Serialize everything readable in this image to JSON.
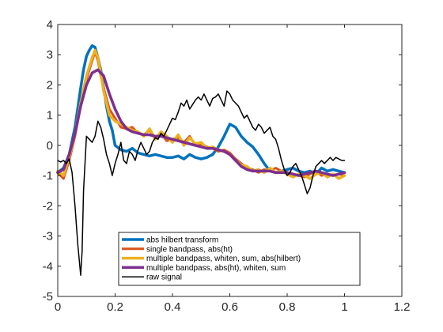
{
  "chart_data": {
    "type": "line",
    "title": "",
    "xlabel": "",
    "ylabel": "",
    "xlim": [
      0,
      1.2
    ],
    "ylim": [
      -5,
      4
    ],
    "xticks": [
      0,
      0.2,
      0.4,
      0.6,
      0.8,
      1,
      1.2
    ],
    "xtick_labels": [
      "0",
      "0.2",
      "0.4",
      "0.6",
      "0.8",
      "1",
      "1.2"
    ],
    "yticks": [
      -5,
      -4,
      -3,
      -2,
      -1,
      0,
      1,
      2,
      3,
      4
    ],
    "ytick_labels": [
      "-5",
      "-4",
      "-3",
      "-2",
      "-1",
      "0",
      "1",
      "2",
      "3",
      "4"
    ],
    "grid": false,
    "legend_position": "bottom-center",
    "series": [
      {
        "name": "abs hilbert transform",
        "color": "#0072BD",
        "width": 3.5,
        "x": [
          0,
          0.02,
          0.04,
          0.06,
          0.08,
          0.09,
          0.1,
          0.11,
          0.12,
          0.13,
          0.14,
          0.15,
          0.16,
          0.17,
          0.18,
          0.19,
          0.2,
          0.22,
          0.24,
          0.26,
          0.28,
          0.3,
          0.32,
          0.34,
          0.36,
          0.38,
          0.4,
          0.42,
          0.44,
          0.46,
          0.48,
          0.5,
          0.52,
          0.54,
          0.56,
          0.58,
          0.6,
          0.62,
          0.64,
          0.66,
          0.68,
          0.7,
          0.72,
          0.74,
          0.76,
          0.78,
          0.8,
          0.82,
          0.84,
          0.86,
          0.88,
          0.9,
          0.92,
          0.94,
          0.96,
          0.98,
          1.0
        ],
        "y": [
          -0.9,
          -0.75,
          -0.3,
          0.6,
          1.9,
          2.5,
          2.95,
          3.15,
          3.3,
          3.25,
          2.9,
          2.5,
          1.9,
          1.3,
          0.8,
          0.5,
          0.0,
          -0.15,
          -0.2,
          -0.1,
          -0.25,
          -0.3,
          -0.35,
          -0.3,
          -0.35,
          -0.4,
          -0.4,
          -0.35,
          -0.45,
          -0.3,
          -0.4,
          -0.45,
          -0.4,
          -0.3,
          -0.05,
          0.3,
          0.7,
          0.6,
          0.3,
          0.1,
          -0.05,
          -0.3,
          -0.6,
          -0.85,
          -0.9,
          -0.85,
          -0.8,
          -0.75,
          -0.85,
          -0.9,
          -0.85,
          -0.95,
          -0.75,
          -0.85,
          -0.8,
          -0.85,
          -0.9
        ]
      },
      {
        "name": "single bandpass, abs(ht)",
        "color": "#D95319",
        "width": 3,
        "x": [
          0,
          0.02,
          0.04,
          0.06,
          0.08,
          0.1,
          0.12,
          0.13,
          0.14,
          0.15,
          0.16,
          0.18,
          0.2,
          0.22,
          0.24,
          0.26,
          0.28,
          0.3,
          0.32,
          0.34,
          0.36,
          0.38,
          0.4,
          0.42,
          0.44,
          0.46,
          0.48,
          0.5,
          0.52,
          0.54,
          0.56,
          0.58,
          0.6,
          0.62,
          0.64,
          0.66,
          0.68,
          0.7,
          0.72,
          0.74,
          0.76,
          0.78,
          0.8,
          0.82,
          0.84,
          0.86,
          0.88,
          0.9,
          0.92,
          0.94,
          0.96,
          0.98,
          1.0
        ],
        "y": [
          -0.9,
          -1.1,
          -0.5,
          0.3,
          1.3,
          2.2,
          2.8,
          3.1,
          2.8,
          2.3,
          1.9,
          1.2,
          0.9,
          0.6,
          0.55,
          0.6,
          0.4,
          0.35,
          0.5,
          0.2,
          0.4,
          0.15,
          0.2,
          0.25,
          0.1,
          0.3,
          0.0,
          0.05,
          -0.05,
          -0.1,
          -0.2,
          -0.15,
          -0.25,
          -0.45,
          -0.6,
          -0.75,
          -0.8,
          -0.9,
          -0.8,
          -0.85,
          -0.75,
          -0.85,
          -0.9,
          -0.95,
          -1.0,
          -1.05,
          -0.95,
          -0.85,
          -1.0,
          -0.95,
          -1.0,
          -0.95,
          -1.0
        ]
      },
      {
        "name": "multiple bandpass, whiten, sum, abs(hilbert)",
        "color": "#EDB120",
        "width": 3.5,
        "x": [
          0,
          0.02,
          0.04,
          0.06,
          0.08,
          0.1,
          0.12,
          0.13,
          0.14,
          0.15,
          0.16,
          0.18,
          0.2,
          0.22,
          0.24,
          0.26,
          0.28,
          0.3,
          0.32,
          0.34,
          0.36,
          0.38,
          0.4,
          0.42,
          0.44,
          0.46,
          0.48,
          0.5,
          0.52,
          0.54,
          0.56,
          0.58,
          0.6,
          0.62,
          0.64,
          0.66,
          0.68,
          0.7,
          0.72,
          0.74,
          0.76,
          0.78,
          0.8,
          0.82,
          0.84,
          0.86,
          0.88,
          0.9,
          0.92,
          0.94,
          0.96,
          0.98,
          1.0
        ],
        "y": [
          -0.85,
          -1.0,
          -0.4,
          0.4,
          1.4,
          2.3,
          2.9,
          3.15,
          2.9,
          2.4,
          1.8,
          1.0,
          0.8,
          0.7,
          0.6,
          0.5,
          0.45,
          0.3,
          0.55,
          0.2,
          0.45,
          0.3,
          0.1,
          0.35,
          0.0,
          0.25,
          0.05,
          0.1,
          -0.1,
          -0.05,
          -0.15,
          -0.2,
          -0.3,
          -0.5,
          -0.65,
          -0.7,
          -0.85,
          -0.8,
          -0.9,
          -0.75,
          -0.9,
          -0.85,
          -0.95,
          -1.05,
          -0.95,
          -1.0,
          -1.1,
          -0.95,
          -0.9,
          -1.05,
          -0.95,
          -1.1,
          -1.0
        ]
      },
      {
        "name": "multiple bandpass, abs(ht), whiten, sum",
        "color": "#7E2F8E",
        "width": 3.5,
        "x": [
          0,
          0.02,
          0.04,
          0.06,
          0.08,
          0.1,
          0.12,
          0.14,
          0.16,
          0.18,
          0.2,
          0.22,
          0.24,
          0.26,
          0.28,
          0.3,
          0.32,
          0.34,
          0.36,
          0.38,
          0.4,
          0.42,
          0.44,
          0.46,
          0.48,
          0.5,
          0.52,
          0.54,
          0.56,
          0.58,
          0.6,
          0.62,
          0.64,
          0.66,
          0.68,
          0.7,
          0.72,
          0.74,
          0.76,
          0.78,
          0.8,
          0.82,
          0.84,
          0.86,
          0.88,
          0.9,
          0.92,
          0.94,
          0.96,
          0.98,
          1.0
        ],
        "y": [
          -0.9,
          -0.8,
          -0.3,
          0.4,
          1.3,
          2.0,
          2.4,
          2.5,
          2.3,
          1.7,
          1.2,
          0.8,
          0.55,
          0.45,
          0.4,
          0.35,
          0.35,
          0.3,
          0.3,
          0.25,
          0.2,
          0.15,
          0.1,
          0.05,
          0.0,
          -0.05,
          -0.1,
          -0.1,
          -0.15,
          -0.2,
          -0.3,
          -0.5,
          -0.7,
          -0.8,
          -0.85,
          -0.85,
          -0.85,
          -0.85,
          -0.9,
          -0.9,
          -0.9,
          -0.95,
          -1.0,
          -0.95,
          -0.9,
          -0.85,
          -0.9,
          -0.95,
          -1.0,
          -0.95,
          -0.9
        ]
      },
      {
        "name": "raw signal",
        "color": "#000000",
        "width": 1.5,
        "x": [
          0,
          0.01,
          0.02,
          0.03,
          0.04,
          0.05,
          0.06,
          0.07,
          0.08,
          0.085,
          0.09,
          0.1,
          0.11,
          0.12,
          0.13,
          0.14,
          0.15,
          0.16,
          0.17,
          0.18,
          0.19,
          0.2,
          0.21,
          0.22,
          0.23,
          0.24,
          0.25,
          0.26,
          0.27,
          0.28,
          0.29,
          0.3,
          0.31,
          0.32,
          0.33,
          0.34,
          0.35,
          0.36,
          0.37,
          0.38,
          0.39,
          0.4,
          0.41,
          0.42,
          0.43,
          0.44,
          0.45,
          0.46,
          0.47,
          0.48,
          0.49,
          0.5,
          0.51,
          0.52,
          0.53,
          0.54,
          0.55,
          0.56,
          0.57,
          0.58,
          0.59,
          0.6,
          0.61,
          0.62,
          0.63,
          0.64,
          0.65,
          0.66,
          0.67,
          0.68,
          0.69,
          0.7,
          0.71,
          0.72,
          0.73,
          0.74,
          0.75,
          0.76,
          0.77,
          0.78,
          0.79,
          0.8,
          0.81,
          0.82,
          0.83,
          0.84,
          0.85,
          0.86,
          0.87,
          0.88,
          0.89,
          0.9,
          0.91,
          0.92,
          0.93,
          0.94,
          0.95,
          0.96,
          0.97,
          0.98,
          0.99,
          1.0
        ],
        "y": [
          -0.5,
          -0.55,
          -0.5,
          -0.6,
          -0.45,
          -0.9,
          -2.0,
          -3.3,
          -4.3,
          -3.5,
          -1.5,
          0.3,
          0.2,
          0.1,
          0.3,
          0.8,
          0.6,
          0.2,
          -0.3,
          -0.6,
          -1.0,
          -0.6,
          -0.3,
          0.1,
          -0.5,
          -0.6,
          -0.2,
          -0.3,
          -0.5,
          -0.15,
          0.1,
          -0.1,
          -0.3,
          -0.2,
          0.1,
          0.25,
          0.2,
          0.4,
          0.3,
          0.5,
          0.7,
          0.9,
          0.85,
          1.1,
          1.4,
          1.3,
          1.5,
          1.2,
          1.35,
          1.5,
          1.6,
          1.5,
          1.7,
          1.5,
          1.3,
          1.55,
          1.6,
          1.7,
          1.5,
          1.3,
          1.8,
          1.7,
          1.5,
          1.4,
          1.3,
          1.1,
          0.9,
          1.0,
          0.8,
          0.6,
          0.5,
          0.7,
          0.6,
          0.4,
          0.5,
          0.6,
          0.3,
          0.2,
          -0.1,
          -0.5,
          -0.8,
          -1.0,
          -0.9,
          -0.7,
          -0.6,
          -0.8,
          -1.0,
          -1.3,
          -1.6,
          -1.4,
          -1.0,
          -0.7,
          -0.6,
          -0.5,
          -0.6,
          -0.5,
          -0.4,
          -0.5,
          -0.4,
          -0.45,
          -0.5,
          -0.5
        ]
      }
    ]
  }
}
